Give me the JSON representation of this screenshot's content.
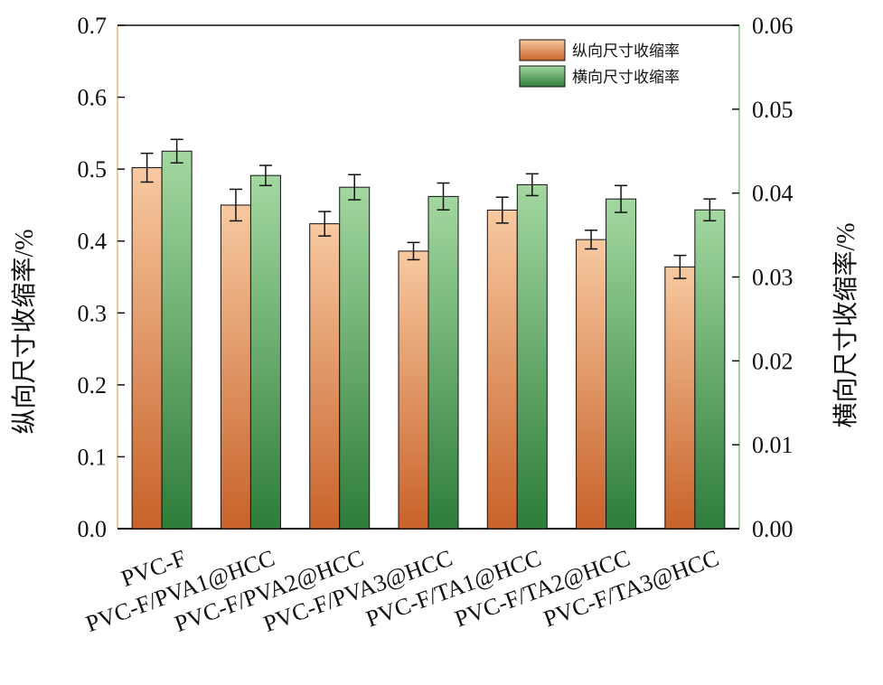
{
  "chart_data": {
    "type": "bar",
    "categories": [
      "PVC-F",
      "PVC-F/PVA1@HCC",
      "PVC-F/PVA2@HCC",
      "PVC-F/PVA3@HCC",
      "PVC-F/TA1@HCC",
      "PVC-F/TA2@HCC",
      "PVC-F/TA3@HCC"
    ],
    "series": [
      {
        "name": "纵向尺寸收缩率",
        "axis": "left",
        "values": [
          0.502,
          0.45,
          0.424,
          0.386,
          0.443,
          0.402,
          0.364
        ],
        "errors": [
          0.02,
          0.022,
          0.017,
          0.012,
          0.018,
          0.013,
          0.016
        ]
      },
      {
        "name": "横向尺寸收缩率",
        "axis": "right",
        "values": [
          0.045,
          0.0421,
          0.0407,
          0.0396,
          0.041,
          0.0393,
          0.038
        ],
        "errors": [
          0.0014,
          0.0012,
          0.0015,
          0.0016,
          0.0013,
          0.0016,
          0.0013
        ]
      }
    ],
    "ylabel": "纵向尺寸收缩率/%",
    "y2label": "横向尺寸收缩率/%",
    "ylim": [
      0,
      0.7
    ],
    "y2lim": [
      0,
      0.06
    ],
    "yticks": [
      "0.0",
      "0.1",
      "0.2",
      "0.3",
      "0.4",
      "0.5",
      "0.6",
      "0.7"
    ],
    "y2ticks": [
      "0.00",
      "0.01",
      "0.02",
      "0.03",
      "0.04",
      "0.05",
      "0.06"
    ],
    "legend_position": "top-right",
    "grid": false,
    "colors": {
      "series1_top": "#f7c9a0",
      "series1_bottom": "#c8622a",
      "series2_top": "#a3d8a0",
      "series2_bottom": "#2e7d3a",
      "left_axis_line": "#f4c79a",
      "right_axis_line": "#9fd89b"
    }
  }
}
